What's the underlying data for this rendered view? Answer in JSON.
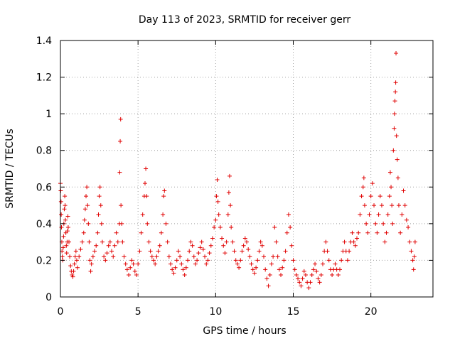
{
  "chart_data": {
    "type": "scatter",
    "title": "Day 113 of 2023, SRMTID for receiver gerr",
    "xlabel": "GPS time / hours",
    "ylabel": "SRMTID / TECUs",
    "xlim": [
      0,
      24
    ],
    "ylim": [
      0,
      1.4
    ],
    "x_ticks": [
      0,
      5,
      10,
      15,
      20
    ],
    "x_tick_labels": [
      "0",
      "5",
      "10",
      "15",
      "20"
    ],
    "y_ticks": [
      0,
      0.2,
      0.4,
      0.6,
      0.8,
      1.0,
      1.2,
      1.4
    ],
    "y_tick_labels": [
      "0",
      "0.2",
      "0.4",
      "0.6",
      "0.8",
      "1",
      "1.2",
      "1.4"
    ],
    "grid": true,
    "marker": "+",
    "marker_color": "#e00000",
    "series": [
      {
        "name": "SRMTID",
        "points": [
          [
            0.0,
            0.62
          ],
          [
            0.02,
            0.58
          ],
          [
            0.04,
            0.52
          ],
          [
            0.05,
            0.45
          ],
          [
            0.07,
            0.38
          ],
          [
            0.09,
            0.3
          ],
          [
            0.1,
            0.25
          ],
          [
            0.12,
            0.22
          ],
          [
            0.15,
            0.2
          ],
          [
            0.18,
            0.27
          ],
          [
            0.2,
            0.33
          ],
          [
            0.22,
            0.4
          ],
          [
            0.25,
            0.48
          ],
          [
            0.28,
            0.55
          ],
          [
            0.3,
            0.5
          ],
          [
            0.32,
            0.42
          ],
          [
            0.35,
            0.35
          ],
          [
            0.38,
            0.28
          ],
          [
            0.4,
            0.24
          ],
          [
            0.43,
            0.3
          ],
          [
            0.45,
            0.36
          ],
          [
            0.48,
            0.44
          ],
          [
            0.5,
            0.38
          ],
          [
            0.55,
            0.3
          ],
          [
            0.6,
            0.22
          ],
          [
            0.65,
            0.17
          ],
          [
            0.7,
            0.14
          ],
          [
            0.75,
            0.12
          ],
          [
            0.8,
            0.11
          ],
          [
            0.85,
            0.14
          ],
          [
            0.9,
            0.18
          ],
          [
            0.95,
            0.22
          ],
          [
            1.0,
            0.25
          ],
          [
            1.05,
            0.2
          ],
          [
            1.1,
            0.16
          ],
          [
            1.2,
            0.22
          ],
          [
            1.3,
            0.26
          ],
          [
            1.4,
            0.3
          ],
          [
            1.5,
            0.35
          ],
          [
            1.55,
            0.42
          ],
          [
            1.6,
            0.48
          ],
          [
            1.65,
            0.55
          ],
          [
            1.7,
            0.6
          ],
          [
            1.75,
            0.5
          ],
          [
            1.8,
            0.4
          ],
          [
            1.85,
            0.3
          ],
          [
            1.9,
            0.2
          ],
          [
            1.95,
            0.14
          ],
          [
            2.0,
            0.18
          ],
          [
            2.1,
            0.22
          ],
          [
            2.2,
            0.25
          ],
          [
            2.3,
            0.28
          ],
          [
            2.4,
            0.35
          ],
          [
            2.45,
            0.45
          ],
          [
            2.5,
            0.55
          ],
          [
            2.55,
            0.6
          ],
          [
            2.6,
            0.5
          ],
          [
            2.65,
            0.4
          ],
          [
            2.7,
            0.3
          ],
          [
            2.8,
            0.22
          ],
          [
            2.9,
            0.2
          ],
          [
            3.0,
            0.24
          ],
          [
            3.1,
            0.28
          ],
          [
            3.2,
            0.3
          ],
          [
            3.3,
            0.25
          ],
          [
            3.4,
            0.22
          ],
          [
            3.5,
            0.28
          ],
          [
            3.6,
            0.35
          ],
          [
            3.7,
            0.3
          ],
          [
            3.8,
            0.4
          ],
          [
            3.82,
            0.68
          ],
          [
            3.85,
            0.85
          ],
          [
            3.88,
            0.97
          ],
          [
            3.9,
            0.5
          ],
          [
            3.95,
            0.4
          ],
          [
            4.0,
            0.3
          ],
          [
            4.1,
            0.22
          ],
          [
            4.2,
            0.18
          ],
          [
            4.3,
            0.15
          ],
          [
            4.4,
            0.12
          ],
          [
            4.5,
            0.16
          ],
          [
            4.6,
            0.2
          ],
          [
            4.7,
            0.18
          ],
          [
            4.8,
            0.14
          ],
          [
            4.9,
            0.12
          ],
          [
            5.0,
            0.18
          ],
          [
            5.1,
            0.25
          ],
          [
            5.2,
            0.35
          ],
          [
            5.3,
            0.45
          ],
          [
            5.4,
            0.55
          ],
          [
            5.45,
            0.62
          ],
          [
            5.5,
            0.7
          ],
          [
            5.55,
            0.55
          ],
          [
            5.6,
            0.4
          ],
          [
            5.7,
            0.3
          ],
          [
            5.8,
            0.25
          ],
          [
            5.9,
            0.22
          ],
          [
            6.0,
            0.2
          ],
          [
            6.1,
            0.18
          ],
          [
            6.2,
            0.22
          ],
          [
            6.3,
            0.25
          ],
          [
            6.4,
            0.28
          ],
          [
            6.5,
            0.35
          ],
          [
            6.6,
            0.45
          ],
          [
            6.65,
            0.55
          ],
          [
            6.7,
            0.58
          ],
          [
            6.8,
            0.4
          ],
          [
            6.9,
            0.3
          ],
          [
            7.0,
            0.22
          ],
          [
            7.1,
            0.18
          ],
          [
            7.2,
            0.15
          ],
          [
            7.3,
            0.13
          ],
          [
            7.4,
            0.16
          ],
          [
            7.5,
            0.2
          ],
          [
            7.6,
            0.25
          ],
          [
            7.7,
            0.22
          ],
          [
            7.8,
            0.18
          ],
          [
            7.9,
            0.15
          ],
          [
            8.0,
            0.12
          ],
          [
            8.1,
            0.16
          ],
          [
            8.2,
            0.2
          ],
          [
            8.3,
            0.25
          ],
          [
            8.4,
            0.3
          ],
          [
            8.5,
            0.28
          ],
          [
            8.6,
            0.22
          ],
          [
            8.7,
            0.18
          ],
          [
            8.8,
            0.2
          ],
          [
            8.9,
            0.24
          ],
          [
            9.0,
            0.27
          ],
          [
            9.1,
            0.3
          ],
          [
            9.2,
            0.26
          ],
          [
            9.3,
            0.22
          ],
          [
            9.4,
            0.18
          ],
          [
            9.5,
            0.2
          ],
          [
            9.6,
            0.24
          ],
          [
            9.7,
            0.28
          ],
          [
            9.8,
            0.32
          ],
          [
            9.9,
            0.38
          ],
          [
            10.0,
            0.42
          ],
          [
            10.05,
            0.55
          ],
          [
            10.1,
            0.64
          ],
          [
            10.15,
            0.52
          ],
          [
            10.2,
            0.45
          ],
          [
            10.3,
            0.38
          ],
          [
            10.4,
            0.32
          ],
          [
            10.5,
            0.28
          ],
          [
            10.6,
            0.24
          ],
          [
            10.7,
            0.3
          ],
          [
            10.8,
            0.45
          ],
          [
            10.85,
            0.57
          ],
          [
            10.9,
            0.66
          ],
          [
            10.95,
            0.5
          ],
          [
            11.0,
            0.38
          ],
          [
            11.1,
            0.3
          ],
          [
            11.2,
            0.25
          ],
          [
            11.3,
            0.2
          ],
          [
            11.4,
            0.18
          ],
          [
            11.5,
            0.16
          ],
          [
            11.6,
            0.2
          ],
          [
            11.7,
            0.25
          ],
          [
            11.8,
            0.28
          ],
          [
            11.9,
            0.32
          ],
          [
            12.0,
            0.3
          ],
          [
            12.1,
            0.26
          ],
          [
            12.2,
            0.22
          ],
          [
            12.3,
            0.18
          ],
          [
            12.4,
            0.15
          ],
          [
            12.5,
            0.13
          ],
          [
            12.6,
            0.16
          ],
          [
            12.7,
            0.2
          ],
          [
            12.8,
            0.25
          ],
          [
            12.9,
            0.3
          ],
          [
            13.0,
            0.28
          ],
          [
            13.1,
            0.22
          ],
          [
            13.2,
            0.15
          ],
          [
            13.3,
            0.1
          ],
          [
            13.4,
            0.06
          ],
          [
            13.5,
            0.12
          ],
          [
            13.6,
            0.18
          ],
          [
            13.7,
            0.22
          ],
          [
            13.8,
            0.38
          ],
          [
            13.9,
            0.3
          ],
          [
            14.0,
            0.22
          ],
          [
            14.1,
            0.15
          ],
          [
            14.2,
            0.12
          ],
          [
            14.3,
            0.16
          ],
          [
            14.4,
            0.2
          ],
          [
            14.5,
            0.25
          ],
          [
            14.6,
            0.35
          ],
          [
            14.7,
            0.45
          ],
          [
            14.8,
            0.38
          ],
          [
            14.9,
            0.28
          ],
          [
            15.0,
            0.2
          ],
          [
            15.1,
            0.15
          ],
          [
            15.2,
            0.12
          ],
          [
            15.3,
            0.1
          ],
          [
            15.4,
            0.08
          ],
          [
            15.5,
            0.06
          ],
          [
            15.6,
            0.1
          ],
          [
            15.7,
            0.14
          ],
          [
            15.8,
            0.12
          ],
          [
            15.9,
            0.08
          ],
          [
            16.0,
            0.05
          ],
          [
            16.1,
            0.08
          ],
          [
            16.2,
            0.12
          ],
          [
            16.3,
            0.15
          ],
          [
            16.4,
            0.18
          ],
          [
            16.5,
            0.14
          ],
          [
            16.6,
            0.1
          ],
          [
            16.7,
            0.08
          ],
          [
            16.8,
            0.12
          ],
          [
            16.9,
            0.18
          ],
          [
            17.0,
            0.25
          ],
          [
            17.1,
            0.3
          ],
          [
            17.2,
            0.25
          ],
          [
            17.3,
            0.2
          ],
          [
            17.4,
            0.15
          ],
          [
            17.5,
            0.12
          ],
          [
            17.6,
            0.15
          ],
          [
            17.7,
            0.18
          ],
          [
            17.8,
            0.15
          ],
          [
            17.9,
            0.12
          ],
          [
            18.0,
            0.15
          ],
          [
            18.1,
            0.2
          ],
          [
            18.2,
            0.25
          ],
          [
            18.3,
            0.3
          ],
          [
            18.4,
            0.25
          ],
          [
            18.5,
            0.2
          ],
          [
            18.6,
            0.25
          ],
          [
            18.7,
            0.3
          ],
          [
            18.8,
            0.35
          ],
          [
            18.9,
            0.3
          ],
          [
            19.0,
            0.28
          ],
          [
            19.1,
            0.32
          ],
          [
            19.2,
            0.35
          ],
          [
            19.3,
            0.45
          ],
          [
            19.4,
            0.55
          ],
          [
            19.5,
            0.6
          ],
          [
            19.55,
            0.65
          ],
          [
            19.6,
            0.5
          ],
          [
            19.7,
            0.4
          ],
          [
            19.8,
            0.35
          ],
          [
            19.9,
            0.45
          ],
          [
            20.0,
            0.55
          ],
          [
            20.1,
            0.62
          ],
          [
            20.2,
            0.5
          ],
          [
            20.3,
            0.4
          ],
          [
            20.4,
            0.35
          ],
          [
            20.5,
            0.45
          ],
          [
            20.6,
            0.55
          ],
          [
            20.7,
            0.5
          ],
          [
            20.8,
            0.4
          ],
          [
            20.9,
            0.3
          ],
          [
            21.0,
            0.35
          ],
          [
            21.1,
            0.45
          ],
          [
            21.2,
            0.55
          ],
          [
            21.25,
            0.68
          ],
          [
            21.3,
            0.6
          ],
          [
            21.35,
            0.5
          ],
          [
            21.4,
            0.4
          ],
          [
            21.45,
            0.8
          ],
          [
            21.5,
            0.92
          ],
          [
            21.52,
            1.0
          ],
          [
            21.55,
            1.07
          ],
          [
            21.58,
            1.12
          ],
          [
            21.6,
            1.17
          ],
          [
            21.62,
            1.33
          ],
          [
            21.65,
            0.88
          ],
          [
            21.7,
            0.75
          ],
          [
            21.75,
            0.65
          ],
          [
            21.8,
            0.5
          ],
          [
            21.9,
            0.35
          ],
          [
            22.0,
            0.45
          ],
          [
            22.1,
            0.58
          ],
          [
            22.2,
            0.5
          ],
          [
            22.3,
            0.42
          ],
          [
            22.4,
            0.38
          ],
          [
            22.5,
            0.3
          ],
          [
            22.6,
            0.25
          ],
          [
            22.7,
            0.2
          ],
          [
            22.75,
            0.15
          ],
          [
            22.8,
            0.22
          ],
          [
            22.85,
            0.3
          ]
        ]
      }
    ]
  }
}
